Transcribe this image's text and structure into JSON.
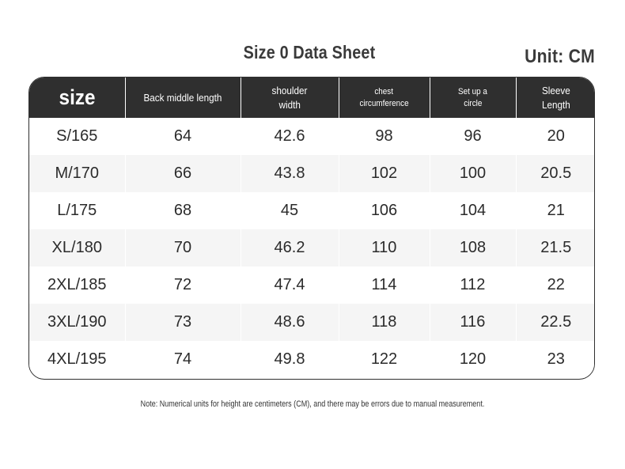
{
  "title": "Size 0 Data Sheet",
  "unit": "Unit: CM",
  "headers": {
    "size": "size",
    "back_middle_length": "Back middle length",
    "shoulder_width_line1": "shoulder",
    "shoulder_width_line2": "width",
    "chest_line1": "chest",
    "chest_line2": "circumference",
    "setup_line1": "Set up a",
    "setup_line2": "circle",
    "sleeve_line1": "Sleeve",
    "sleeve_line2": "Length"
  },
  "rows": [
    {
      "size": "S/165",
      "back": "64",
      "shoulder": "42.6",
      "chest": "98",
      "setup": "96",
      "sleeve": "20"
    },
    {
      "size": "M/170",
      "back": "66",
      "shoulder": "43.8",
      "chest": "102",
      "setup": "100",
      "sleeve": "20.5"
    },
    {
      "size": "L/175",
      "back": "68",
      "shoulder": "45",
      "chest": "106",
      "setup": "104",
      "sleeve": "21"
    },
    {
      "size": "XL/180",
      "back": "70",
      "shoulder": "46.2",
      "chest": "110",
      "setup": "108",
      "sleeve": "21.5"
    },
    {
      "size": "2XL/185",
      "back": "72",
      "shoulder": "47.4",
      "chest": "114",
      "setup": "112",
      "sleeve": "22"
    },
    {
      "size": "3XL/190",
      "back": "73",
      "shoulder": "48.6",
      "chest": "118",
      "setup": "116",
      "sleeve": "22.5"
    },
    {
      "size": "4XL/195",
      "back": "74",
      "shoulder": "49.8",
      "chest": "122",
      "setup": "120",
      "sleeve": "23"
    }
  ],
  "note": "Note: Numerical units for height are centimeters (CM), and there may be errors due to manual measurement.",
  "colors": {
    "header_bg": "#2f2f2f",
    "header_text": "#ffffff",
    "stripe": "#f5f5f5",
    "text": "#2b2b2b"
  }
}
